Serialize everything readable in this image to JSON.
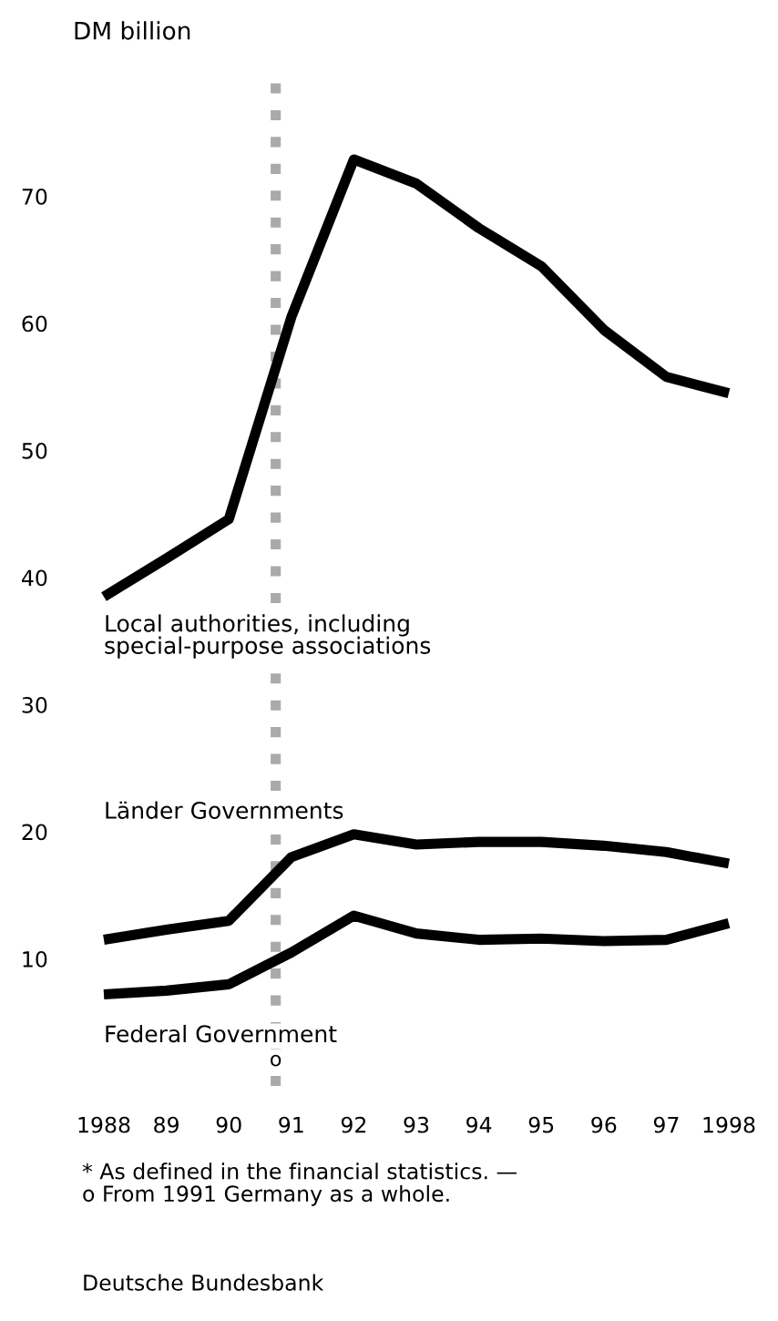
{
  "chart_data": {
    "type": "line",
    "ylabel": "DM billion",
    "x": [
      1988,
      1989,
      1990,
      1991,
      1992,
      1993,
      1994,
      1995,
      1996,
      1997,
      1998
    ],
    "xlim": [
      1988,
      1998
    ],
    "xticks": [
      1988,
      {
        "value": 1989,
        "label": "89"
      },
      {
        "value": 1990,
        "label": "90"
      },
      {
        "value": 1991,
        "label": "91"
      },
      {
        "value": 1992,
        "label": "92"
      },
      {
        "value": 1993,
        "label": "93"
      },
      {
        "value": 1994,
        "label": "94"
      },
      {
        "value": 1995,
        "label": "95"
      },
      {
        "value": 1996,
        "label": "96"
      },
      {
        "value": 1997,
        "label": "97"
      },
      1998
    ],
    "ylim": [
      0,
      80
    ],
    "yticks": [
      10,
      20,
      30,
      40,
      50,
      60,
      70
    ],
    "series": [
      {
        "name": "Local authorities, including\nspecial-purpose associations",
        "color": "#000000",
        "values": [
          38.5,
          41.5,
          44.6,
          60.5,
          72.9,
          71,
          67.5,
          64.5,
          59.5,
          55.8,
          54.5
        ]
      },
      {
        "name": "Länder Governments",
        "color": "#000000",
        "values": [
          11.5,
          12.3,
          13,
          18,
          19.8,
          19,
          19.2,
          19.2,
          18.9,
          18.4,
          17.5
        ]
      },
      {
        "name": "Federal Government",
        "color": "#000000",
        "values": [
          7.2,
          7.5,
          8,
          10.5,
          13.4,
          12,
          11.5,
          11.6,
          11.4,
          11.5,
          12.8
        ]
      }
    ],
    "ref_lines": [
      {
        "axis": "x",
        "value": 1990.75,
        "label": "o",
        "color": "#aaaaaa",
        "line_style": "dotted"
      }
    ],
    "annotations": [
      "* As defined in the financial statistics. —\no From 1991 Germany as a whole.",
      "Deutsche Bundesbank"
    ],
    "legend": false,
    "grid": false,
    "marker": "none",
    "line_style": "solid"
  }
}
